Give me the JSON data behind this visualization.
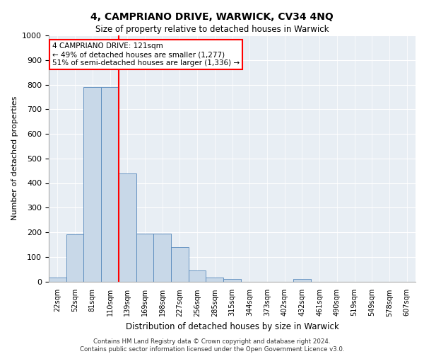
{
  "title": "4, CAMPRIANO DRIVE, WARWICK, CV34 4NQ",
  "subtitle": "Size of property relative to detached houses in Warwick",
  "xlabel": "Distribution of detached houses by size in Warwick",
  "ylabel": "Number of detached properties",
  "categories": [
    "22sqm",
    "52sqm",
    "81sqm",
    "110sqm",
    "139sqm",
    "169sqm",
    "198sqm",
    "227sqm",
    "256sqm",
    "285sqm",
    "315sqm",
    "344sqm",
    "373sqm",
    "402sqm",
    "432sqm",
    "461sqm",
    "490sqm",
    "519sqm",
    "549sqm",
    "578sqm",
    "607sqm"
  ],
  "values": [
    15,
    190,
    790,
    790,
    440,
    195,
    195,
    140,
    45,
    15,
    10,
    0,
    0,
    0,
    10,
    0,
    0,
    0,
    0,
    0,
    0
  ],
  "bar_color": "#c8d8e8",
  "bar_edge_color": "#5588bb",
  "vline_x_index": 3,
  "vline_color": "red",
  "annotation_text": "4 CAMPRIANO DRIVE: 121sqm\n← 49% of detached houses are smaller (1,277)\n51% of semi-detached houses are larger (1,336) →",
  "annotation_box_color": "white",
  "annotation_box_edge": "red",
  "ylim": [
    0,
    1000
  ],
  "yticks": [
    0,
    100,
    200,
    300,
    400,
    500,
    600,
    700,
    800,
    900,
    1000
  ],
  "background_color": "#e8eef4",
  "footer_line1": "Contains HM Land Registry data © Crown copyright and database right 2024.",
  "footer_line2": "Contains public sector information licensed under the Open Government Licence v3.0."
}
